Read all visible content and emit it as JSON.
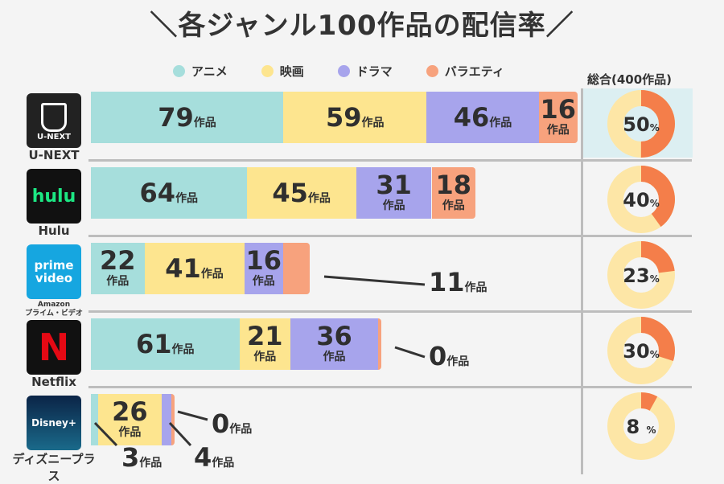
{
  "title": "＼各ジャンル100作品の配信率／",
  "total_label": "総合(400作品)",
  "colors": {
    "anime": "#a6dedc",
    "movie": "#fde58f",
    "drama": "#a7a4ec",
    "variety": "#f7a27d",
    "donut_fill": "#f47e4a",
    "donut_bg": "#fde6a6"
  },
  "chart_data": {
    "type": "bar",
    "stacked": true,
    "orientation": "horizontal",
    "title": "＼各ジャンル100作品の配信率／",
    "legend": [
      "アニメ",
      "映画",
      "ドラマ",
      "バラエティ"
    ],
    "legend_placement": "top",
    "unit": "作品",
    "services": [
      {
        "name": "U-NEXT",
        "logo_text": "U-NEXT",
        "values": [
          79,
          59,
          46,
          16
        ],
        "total_percent": 50,
        "percent_text": "50"
      },
      {
        "name": "Hulu",
        "logo_text": "hulu",
        "values": [
          64,
          45,
          31,
          18
        ],
        "total_percent": 40,
        "percent_text": "40"
      },
      {
        "name": "Amazon\nプライム・ビデオ",
        "logo_text": "prime video",
        "values": [
          22,
          41,
          16,
          11
        ],
        "total_percent": 23,
        "percent_text": "23"
      },
      {
        "name": "Netflix",
        "logo_text": "N",
        "values": [
          61,
          21,
          36,
          0
        ],
        "total_percent": 30,
        "percent_text": "30"
      },
      {
        "name": "ディズニープラス",
        "logo_text": "Disney+",
        "values": [
          3,
          26,
          4,
          0
        ],
        "total_percent": 8,
        "percent_text": "8 "
      }
    ]
  }
}
